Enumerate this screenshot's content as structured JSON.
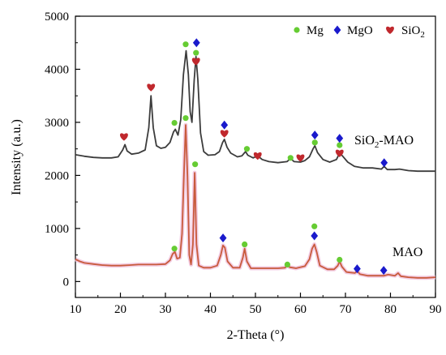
{
  "chart_data": {
    "type": "line",
    "xlabel": "2-Theta (°)",
    "ylabel": "Intensity (a.u.)",
    "xlim": [
      10,
      90
    ],
    "ylim": [
      -300,
      5000
    ],
    "x_ticks": [
      "10",
      "20",
      "30",
      "40",
      "50",
      "60",
      "70",
      "80",
      "90"
    ],
    "y_ticks": [
      "0",
      "1000",
      "2000",
      "3000",
      "4000",
      "5000"
    ],
    "grid": false,
    "legend": {
      "placement": "top-right",
      "entries": [
        {
          "name": "Mg",
          "marker": "circle",
          "color": "#66cc33"
        },
        {
          "name": "MgO",
          "marker": "diamond",
          "color": "#1a1acc"
        },
        {
          "name": "SiO",
          "sub": "2",
          "marker": "heart",
          "color": "#c0282d"
        }
      ]
    },
    "series": [
      {
        "name": "SiO2-MAO",
        "label_main": "SiO",
        "label_sub": "2",
        "label_tail": "-MAO",
        "color": "#3c3c3c",
        "points": [
          [
            10,
            2390
          ],
          [
            12,
            2360
          ],
          [
            14,
            2340
          ],
          [
            16,
            2330
          ],
          [
            18,
            2330
          ],
          [
            19.5,
            2350
          ],
          [
            20.5,
            2480
          ],
          [
            21,
            2580
          ],
          [
            21.5,
            2460
          ],
          [
            22.5,
            2400
          ],
          [
            24,
            2420
          ],
          [
            25.5,
            2480
          ],
          [
            26.3,
            2900
          ],
          [
            26.8,
            3500
          ],
          [
            27.3,
            2900
          ],
          [
            28,
            2560
          ],
          [
            29,
            2510
          ],
          [
            30,
            2530
          ],
          [
            31,
            2620
          ],
          [
            31.8,
            2820
          ],
          [
            32.2,
            2870
          ],
          [
            32.8,
            2760
          ],
          [
            33.4,
            3050
          ],
          [
            34,
            3900
          ],
          [
            34.6,
            4350
          ],
          [
            35.1,
            3900
          ],
          [
            35.5,
            3200
          ],
          [
            35.9,
            3000
          ],
          [
            36.4,
            3800
          ],
          [
            36.8,
            4240
          ],
          [
            37.2,
            3800
          ],
          [
            37.8,
            2800
          ],
          [
            38.5,
            2450
          ],
          [
            39.5,
            2380
          ],
          [
            41,
            2390
          ],
          [
            42,
            2450
          ],
          [
            42.7,
            2620
          ],
          [
            43.1,
            2680
          ],
          [
            43.7,
            2530
          ],
          [
            44.5,
            2420
          ],
          [
            46,
            2350
          ],
          [
            47,
            2370
          ],
          [
            47.8,
            2450
          ],
          [
            48.3,
            2380
          ],
          [
            49.5,
            2330
          ],
          [
            50.5,
            2370
          ],
          [
            51.5,
            2300
          ],
          [
            53,
            2260
          ],
          [
            55,
            2240
          ],
          [
            57,
            2260
          ],
          [
            57.8,
            2320
          ],
          [
            58.6,
            2260
          ],
          [
            60,
            2250
          ],
          [
            61,
            2280
          ],
          [
            62,
            2350
          ],
          [
            62.8,
            2500
          ],
          [
            63.2,
            2560
          ],
          [
            63.8,
            2430
          ],
          [
            65,
            2300
          ],
          [
            66.5,
            2250
          ],
          [
            68,
            2300
          ],
          [
            68.7,
            2420
          ],
          [
            69.4,
            2360
          ],
          [
            70.5,
            2250
          ],
          [
            72,
            2170
          ],
          [
            74,
            2140
          ],
          [
            76,
            2140
          ],
          [
            78,
            2120
          ],
          [
            78.6,
            2170
          ],
          [
            79.3,
            2110
          ],
          [
            81,
            2110
          ],
          [
            82,
            2120
          ],
          [
            84,
            2090
          ],
          [
            86,
            2080
          ],
          [
            88,
            2080
          ],
          [
            90,
            2080
          ]
        ]
      },
      {
        "name": "MAO",
        "label_main": "MAO",
        "label_sub": "",
        "label_tail": "",
        "color": "#c85a3c",
        "points": [
          [
            10,
            420
          ],
          [
            11,
            380
          ],
          [
            12,
            350
          ],
          [
            14,
            330
          ],
          [
            16,
            310
          ],
          [
            18,
            300
          ],
          [
            20,
            300
          ],
          [
            22,
            310
          ],
          [
            24,
            320
          ],
          [
            26,
            320
          ],
          [
            28,
            320
          ],
          [
            30,
            330
          ],
          [
            31,
            400
          ],
          [
            31.6,
            520
          ],
          [
            32.1,
            560
          ],
          [
            32.6,
            430
          ],
          [
            33.2,
            450
          ],
          [
            33.7,
            900
          ],
          [
            34.1,
            2000
          ],
          [
            34.5,
            2950
          ],
          [
            34.9,
            2000
          ],
          [
            35.3,
            500
          ],
          [
            35.7,
            320
          ],
          [
            36.1,
            700
          ],
          [
            36.5,
            2050
          ],
          [
            36.9,
            700
          ],
          [
            37.4,
            300
          ],
          [
            38.5,
            260
          ],
          [
            40,
            260
          ],
          [
            41.5,
            300
          ],
          [
            42.3,
            500
          ],
          [
            42.8,
            680
          ],
          [
            43.2,
            640
          ],
          [
            43.8,
            380
          ],
          [
            45,
            260
          ],
          [
            46.5,
            260
          ],
          [
            47.2,
            450
          ],
          [
            47.6,
            620
          ],
          [
            48.1,
            380
          ],
          [
            49,
            250
          ],
          [
            51,
            250
          ],
          [
            53,
            250
          ],
          [
            55,
            250
          ],
          [
            56.6,
            260
          ],
          [
            57.1,
            320
          ],
          [
            57.6,
            270
          ],
          [
            59,
            250
          ],
          [
            61,
            290
          ],
          [
            62,
            420
          ],
          [
            62.6,
            620
          ],
          [
            63.1,
            700
          ],
          [
            63.6,
            560
          ],
          [
            64.3,
            300
          ],
          [
            66,
            230
          ],
          [
            67.5,
            230
          ],
          [
            68.3,
            300
          ],
          [
            68.7,
            380
          ],
          [
            69.2,
            280
          ],
          [
            70.2,
            180
          ],
          [
            71,
            170
          ],
          [
            72.1,
            160
          ],
          [
            72.6,
            200
          ],
          [
            73.2,
            140
          ],
          [
            75,
            110
          ],
          [
            77,
            110
          ],
          [
            78.5,
            110
          ],
          [
            79.5,
            130
          ],
          [
            81,
            110
          ],
          [
            81.7,
            160
          ],
          [
            82.3,
            100
          ],
          [
            84,
            80
          ],
          [
            86,
            70
          ],
          [
            88,
            70
          ],
          [
            90,
            80
          ]
        ]
      }
    ],
    "annotations": [
      {
        "type": "circle",
        "x": 32.0,
        "y": 2990
      },
      {
        "type": "circle",
        "x": 34.5,
        "y": 4470
      },
      {
        "type": "circle",
        "x": 36.8,
        "y": 4310
      },
      {
        "type": "circle",
        "x": 48.1,
        "y": 2500
      },
      {
        "type": "circle",
        "x": 57.8,
        "y": 2330
      },
      {
        "type": "circle",
        "x": 63.2,
        "y": 2620
      },
      {
        "type": "circle",
        "x": 68.7,
        "y": 2570
      },
      {
        "type": "diamond",
        "x": 36.9,
        "y": 4500
      },
      {
        "type": "diamond",
        "x": 43.1,
        "y": 2950
      },
      {
        "type": "diamond",
        "x": 63.2,
        "y": 2760
      },
      {
        "type": "diamond",
        "x": 68.7,
        "y": 2700
      },
      {
        "type": "diamond",
        "x": 78.6,
        "y": 2240
      },
      {
        "type": "heart",
        "x": 20.8,
        "y": 2730
      },
      {
        "type": "heart",
        "x": 26.8,
        "y": 3660
      },
      {
        "type": "heart",
        "x": 36.8,
        "y": 4150
      },
      {
        "type": "heart",
        "x": 43.1,
        "y": 2790
      },
      {
        "type": "heart",
        "x": 50.5,
        "y": 2370
      },
      {
        "type": "heart",
        "x": 60.0,
        "y": 2330
      },
      {
        "type": "heart",
        "x": 68.7,
        "y": 2420
      },
      {
        "type": "circle",
        "x": 32.0,
        "y": 620
      },
      {
        "type": "circle",
        "x": 34.5,
        "y": 3080
      },
      {
        "type": "circle",
        "x": 36.6,
        "y": 2210
      },
      {
        "type": "circle",
        "x": 47.6,
        "y": 700
      },
      {
        "type": "circle",
        "x": 57.1,
        "y": 320
      },
      {
        "type": "circle",
        "x": 63.1,
        "y": 1040
      },
      {
        "type": "circle",
        "x": 68.7,
        "y": 410
      },
      {
        "type": "diamond",
        "x": 42.8,
        "y": 820
      },
      {
        "type": "diamond",
        "x": 63.1,
        "y": 860
      },
      {
        "type": "diamond",
        "x": 72.6,
        "y": 240
      },
      {
        "type": "diamond",
        "x": 78.5,
        "y": 210
      }
    ]
  }
}
